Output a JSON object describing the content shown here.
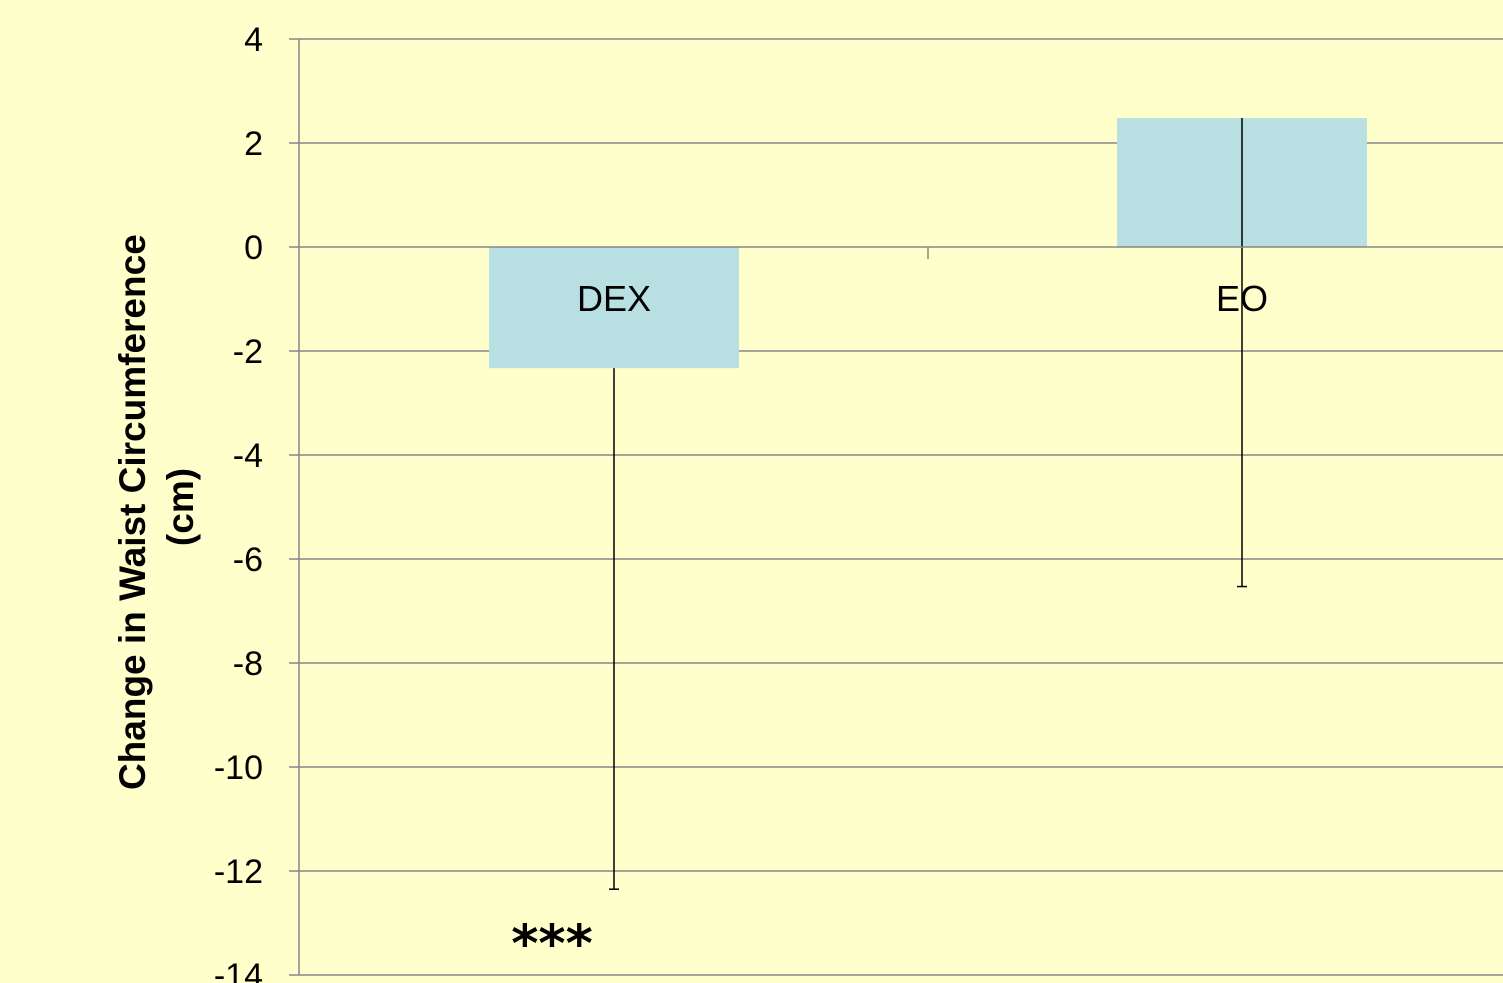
{
  "colors": {
    "background": "#ffffcc",
    "bar": "#b8e0e2",
    "grid": "#868686",
    "error_bar": "#000000"
  },
  "chart_data": {
    "type": "bar",
    "title": "",
    "xlabel": "",
    "ylabel_lines": [
      "Change in Waist Circumference",
      "(cm)"
    ],
    "ylim": [
      -14,
      4
    ],
    "yticks": [
      4,
      2,
      0,
      -2,
      -4,
      -6,
      -8,
      -10,
      -12,
      -14
    ],
    "grid": true,
    "legend": "none",
    "categories": [
      "DEX",
      "EO"
    ],
    "values": [
      -2.33,
      2.48
    ],
    "error_bars": [
      {
        "lower": -12.35,
        "upper": -2.33
      },
      {
        "lower": -6.53,
        "upper": 2.48
      }
    ],
    "annotations": [
      {
        "text": "***",
        "category": "DEX",
        "y": -13.7
      }
    ]
  }
}
